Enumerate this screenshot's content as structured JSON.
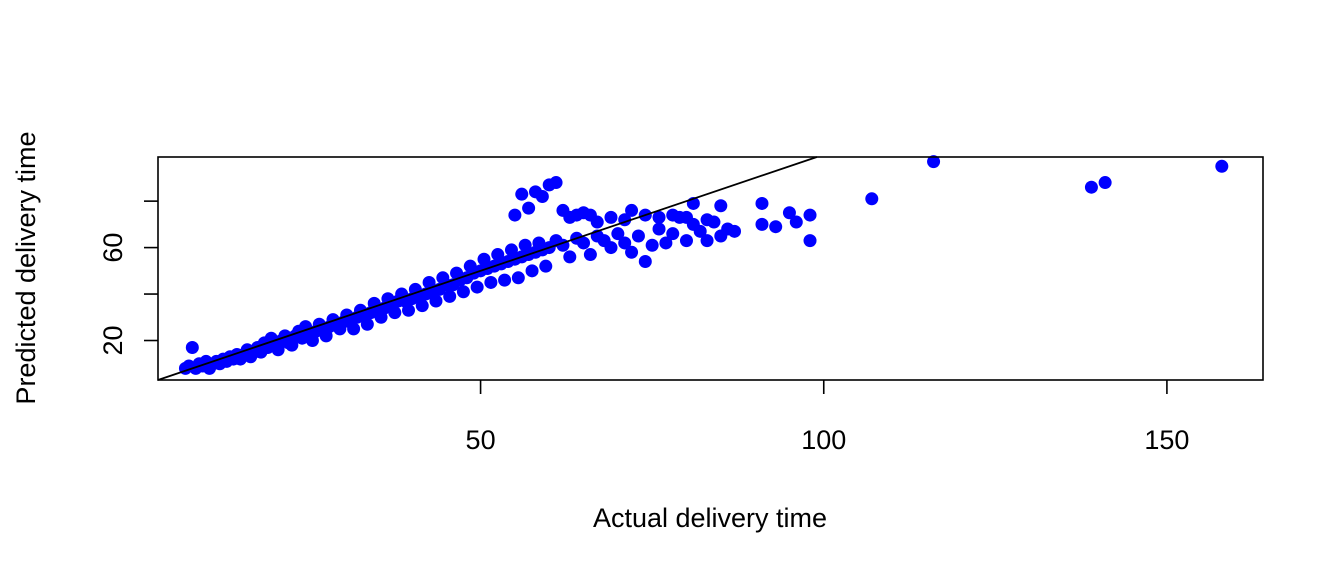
{
  "chart_data": {
    "type": "scatter",
    "title": "",
    "xlabel": "Actual delivery time",
    "ylabel": "Predicted delivery time",
    "xlim": [
      3,
      164
    ],
    "ylim": [
      3,
      99
    ],
    "x_ticks": [
      50,
      100,
      150
    ],
    "x_tick_labels": [
      "50",
      "100",
      "150"
    ],
    "y_ticks": [
      20,
      40,
      60,
      80
    ],
    "y_tick_labels": [
      "20",
      "",
      "60",
      ""
    ],
    "grid": false,
    "legend": "none",
    "point_color": "#0000ff",
    "reference_line": {
      "intercept": 0,
      "slope": 1,
      "color": "#000000"
    },
    "series": [
      {
        "values": [
          [
            7,
            8
          ],
          [
            7.5,
            9
          ],
          [
            8,
            17
          ],
          [
            8.5,
            8
          ],
          [
            9,
            10
          ],
          [
            9.5,
            9
          ],
          [
            10,
            11
          ],
          [
            10.5,
            8
          ],
          [
            11,
            10
          ],
          [
            11.5,
            11
          ],
          [
            12,
            10
          ],
          [
            12.5,
            12
          ],
          [
            13,
            11
          ],
          [
            13.5,
            13
          ],
          [
            14,
            12
          ],
          [
            14.5,
            14
          ],
          [
            15,
            12
          ],
          [
            15.5,
            14
          ],
          [
            16,
            16
          ],
          [
            16.5,
            13
          ],
          [
            17,
            15
          ],
          [
            17.5,
            17
          ],
          [
            18,
            15
          ],
          [
            18.5,
            19
          ],
          [
            19,
            17
          ],
          [
            19.5,
            21
          ],
          [
            20,
            18
          ],
          [
            20.5,
            16
          ],
          [
            21,
            20
          ],
          [
            21.5,
            22
          ],
          [
            22,
            19
          ],
          [
            22.5,
            18
          ],
          [
            23,
            22
          ],
          [
            23.5,
            24
          ],
          [
            24,
            21
          ],
          [
            24.5,
            26
          ],
          [
            25,
            23
          ],
          [
            25.5,
            20
          ],
          [
            26,
            24
          ],
          [
            26.5,
            27
          ],
          [
            27,
            25
          ],
          [
            27.5,
            22
          ],
          [
            28,
            26
          ],
          [
            28.5,
            29
          ],
          [
            29,
            27
          ],
          [
            29.5,
            25
          ],
          [
            30,
            28
          ],
          [
            30.5,
            31
          ],
          [
            31,
            28
          ],
          [
            31.5,
            25
          ],
          [
            32,
            30
          ],
          [
            32.5,
            33
          ],
          [
            33,
            31
          ],
          [
            33.5,
            27
          ],
          [
            34,
            32
          ],
          [
            34.5,
            36
          ],
          [
            35,
            33
          ],
          [
            35.5,
            30
          ],
          [
            36,
            34
          ],
          [
            36.5,
            38
          ],
          [
            37,
            36
          ],
          [
            37.5,
            32
          ],
          [
            38,
            37
          ],
          [
            38.5,
            40
          ],
          [
            39,
            37
          ],
          [
            39.5,
            33
          ],
          [
            40,
            38
          ],
          [
            40.5,
            42
          ],
          [
            41,
            39
          ],
          [
            41.5,
            35
          ],
          [
            42,
            40
          ],
          [
            42.5,
            45
          ],
          [
            43,
            41
          ],
          [
            43.5,
            37
          ],
          [
            44,
            42
          ],
          [
            44.5,
            47
          ],
          [
            45,
            44
          ],
          [
            45.5,
            39
          ],
          [
            46,
            44
          ],
          [
            46.5,
            49
          ],
          [
            47,
            46
          ],
          [
            47.5,
            41
          ],
          [
            48,
            47
          ],
          [
            48.5,
            52
          ],
          [
            49,
            49
          ],
          [
            49.5,
            43
          ],
          [
            50,
            50
          ],
          [
            50.5,
            55
          ],
          [
            51,
            51
          ],
          [
            51.5,
            45
          ],
          [
            52,
            52
          ],
          [
            52.5,
            57
          ],
          [
            53,
            53
          ],
          [
            53.5,
            46
          ],
          [
            54,
            54
          ],
          [
            54.5,
            59
          ],
          [
            55,
            55
          ],
          [
            55.5,
            47
          ],
          [
            56,
            56
          ],
          [
            56.5,
            61
          ],
          [
            57,
            57
          ],
          [
            57.5,
            50
          ],
          [
            58,
            58
          ],
          [
            58.5,
            62
          ],
          [
            59,
            59
          ],
          [
            59.5,
            52
          ],
          [
            60,
            60
          ],
          [
            61,
            63
          ],
          [
            62,
            61
          ],
          [
            63,
            56
          ],
          [
            64,
            64
          ],
          [
            65,
            62
          ],
          [
            66,
            57
          ],
          [
            67,
            65
          ],
          [
            68,
            63
          ],
          [
            69,
            60
          ],
          [
            70,
            66
          ],
          [
            71,
            62
          ],
          [
            72,
            58
          ],
          [
            73,
            65
          ],
          [
            74,
            54
          ],
          [
            75,
            61
          ],
          [
            76,
            68
          ],
          [
            77,
            62
          ],
          [
            78,
            66
          ],
          [
            79,
            73
          ],
          [
            80,
            63
          ],
          [
            81,
            70
          ],
          [
            82,
            67
          ],
          [
            83,
            63
          ],
          [
            84,
            71
          ],
          [
            85,
            65
          ],
          [
            86,
            68
          ],
          [
            87,
            67
          ],
          [
            55,
            74
          ],
          [
            56,
            83
          ],
          [
            57,
            77
          ],
          [
            58,
            84
          ],
          [
            59,
            82
          ],
          [
            60,
            87
          ],
          [
            61,
            88
          ],
          [
            62,
            76
          ],
          [
            63,
            73
          ],
          [
            64,
            74
          ],
          [
            65,
            75
          ],
          [
            66,
            74
          ],
          [
            67,
            71
          ],
          [
            69,
            73
          ],
          [
            71,
            72
          ],
          [
            72,
            76
          ],
          [
            74,
            74
          ],
          [
            76,
            73
          ],
          [
            78,
            74
          ],
          [
            80,
            73
          ],
          [
            81,
            79
          ],
          [
            83,
            72
          ],
          [
            85,
            78
          ],
          [
            91,
            79
          ],
          [
            91,
            70
          ],
          [
            93,
            69
          ],
          [
            95,
            75
          ],
          [
            96,
            71
          ],
          [
            98,
            63
          ],
          [
            98,
            74
          ],
          [
            107,
            81
          ],
          [
            116,
            97
          ],
          [
            139,
            86
          ],
          [
            141,
            88
          ],
          [
            158,
            95
          ]
        ]
      }
    ]
  }
}
